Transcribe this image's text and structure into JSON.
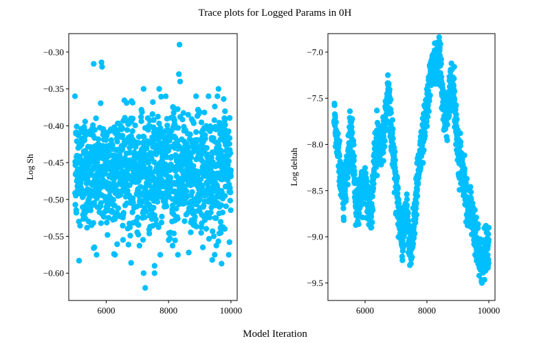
{
  "figure": {
    "title": "Trace plots for Logged Params in 0H",
    "xlabel": "Model Iteration",
    "marker_color": "#00bfff"
  },
  "chart_data": [
    {
      "type": "scatter",
      "ylabel": "Log Sh",
      "xlim": [
        4800,
        10200
      ],
      "ylim": [
        -0.637,
        -0.275
      ],
      "xticks": [
        6000,
        8000,
        10000
      ],
      "yticks": [
        -0.3,
        -0.35,
        -0.4,
        -0.45,
        -0.5,
        -0.55,
        -0.6
      ],
      "ytick_labels": [
        "−0.30",
        "−0.35",
        "−0.40",
        "−0.45",
        "−0.50",
        "−0.55",
        "−0.60"
      ],
      "x_range": [
        5000,
        10000
      ],
      "center": -0.462,
      "spread": 0.04,
      "outliers": [
        {
          "x": 8350,
          "y": -0.29
        },
        {
          "x": 5600,
          "y": -0.316
        },
        {
          "x": 5850,
          "y": -0.314
        },
        {
          "x": 5870,
          "y": -0.32
        },
        {
          "x": 8330,
          "y": -0.33
        },
        {
          "x": 8370,
          "y": -0.34
        },
        {
          "x": 9600,
          "y": -0.35
        },
        {
          "x": 7200,
          "y": -0.35
        },
        {
          "x": 7700,
          "y": -0.35
        },
        {
          "x": 7250,
          "y": -0.62
        },
        {
          "x": 7200,
          "y": -0.6
        },
        {
          "x": 7550,
          "y": -0.6
        },
        {
          "x": 7550,
          "y": -0.59
        },
        {
          "x": 9700,
          "y": -0.587
        },
        {
          "x": 6800,
          "y": -0.586
        },
        {
          "x": 5130,
          "y": -0.583
        },
        {
          "x": 9400,
          "y": -0.582
        },
        {
          "x": 6250,
          "y": -0.574
        },
        {
          "x": 5600,
          "y": -0.566
        },
        {
          "x": 8300,
          "y": -0.575
        },
        {
          "x": 9100,
          "y": -0.565
        }
      ],
      "series": [
        {
          "values": []
        }
      ]
    },
    {
      "type": "scatter",
      "ylabel": "Log deltah",
      "xlim": [
        4800,
        10200
      ],
      "ylim": [
        -9.69,
        -6.8
      ],
      "xticks": [
        6000,
        8000,
        10000
      ],
      "yticks": [
        -7.0,
        -7.5,
        -8.0,
        -8.5,
        -9.0,
        -9.5
      ],
      "ytick_labels": [
        "−7.0",
        "−7.5",
        "−8.0",
        "−8.5",
        "−9.0",
        "−9.5"
      ],
      "x_range": [
        5000,
        10000
      ],
      "trace": [
        [
          5000,
          -7.7
        ],
        [
          5100,
          -8.0
        ],
        [
          5200,
          -8.3
        ],
        [
          5300,
          -8.6
        ],
        [
          5400,
          -8.3
        ],
        [
          5550,
          -7.8
        ],
        [
          5650,
          -8.4
        ],
        [
          5700,
          -8.7
        ],
        [
          5900,
          -8.5
        ],
        [
          6000,
          -8.4
        ],
        [
          6100,
          -8.6
        ],
        [
          6200,
          -8.8
        ],
        [
          6300,
          -8.1
        ],
        [
          6450,
          -8.0
        ],
        [
          6600,
          -7.9
        ],
        [
          6700,
          -7.6
        ],
        [
          6750,
          -7.3
        ],
        [
          6850,
          -7.9
        ],
        [
          6950,
          -8.2
        ],
        [
          7100,
          -8.8
        ],
        [
          7200,
          -9.0
        ],
        [
          7350,
          -8.7
        ],
        [
          7450,
          -9.2
        ],
        [
          7600,
          -8.8
        ],
        [
          7700,
          -8.3
        ],
        [
          7800,
          -8.1
        ],
        [
          7900,
          -7.8
        ],
        [
          8000,
          -7.6
        ],
        [
          8100,
          -7.3
        ],
        [
          8200,
          -7.1
        ],
        [
          8300,
          -7.1
        ],
        [
          8400,
          -7.0
        ],
        [
          8500,
          -7.5
        ],
        [
          8650,
          -7.7
        ],
        [
          8800,
          -7.3
        ],
        [
          8900,
          -7.6
        ],
        [
          9000,
          -8.0
        ],
        [
          9100,
          -8.2
        ],
        [
          9250,
          -8.5
        ],
        [
          9400,
          -8.7
        ],
        [
          9550,
          -9.0
        ],
        [
          9700,
          -9.2
        ],
        [
          9800,
          -9.35
        ],
        [
          9900,
          -9.1
        ],
        [
          10000,
          -9.1
        ]
      ],
      "noise": 0.12,
      "series": [
        {
          "values": []
        }
      ]
    }
  ]
}
